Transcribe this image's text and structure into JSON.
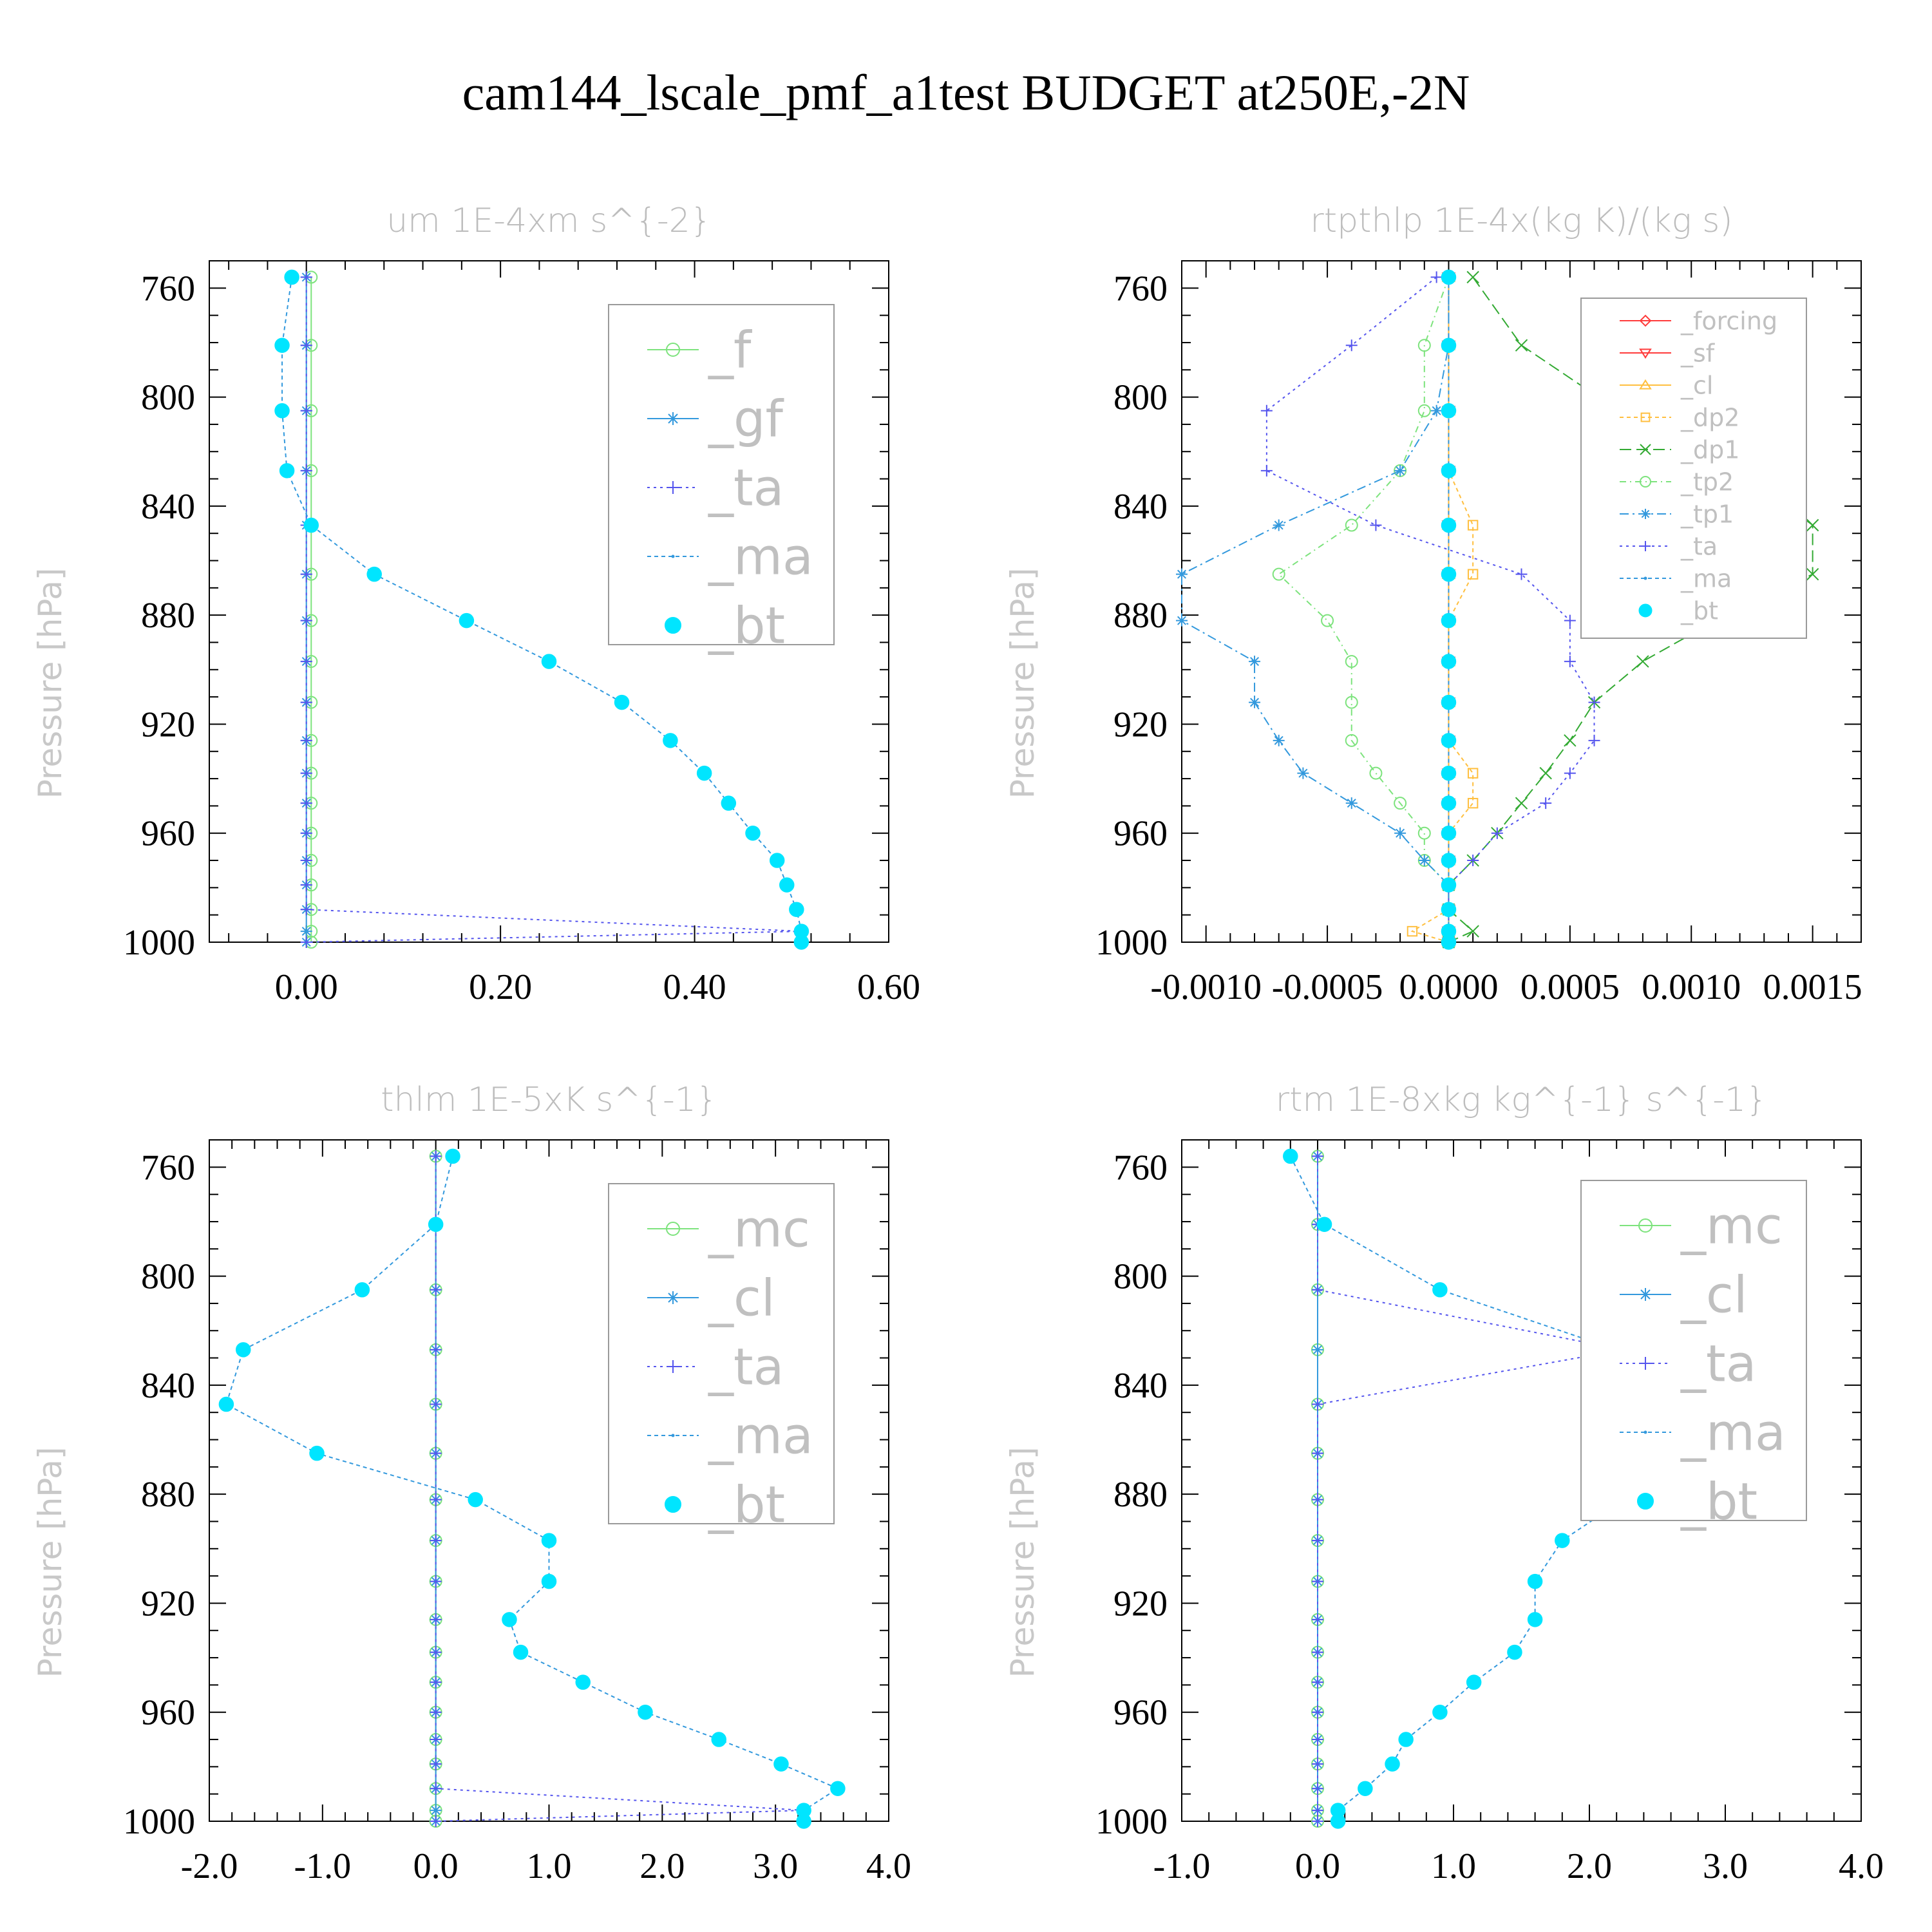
{
  "title": "cam144_lscale_pmf_a1test  BUDGET at250E,-2N",
  "colors": {
    "forcing": "#ff3b3b",
    "sf": "#ff3b3b",
    "cl_orange": "#ffbf3f",
    "dp2": "#ffbf3f",
    "dp1": "#33aa33",
    "tp2": "#7de37d",
    "tp1": "#3399dd",
    "ta": "#5555ee",
    "ma": "#3399dd",
    "bt": "#00e5ff",
    "f": "#7de37d",
    "gf": "#3399dd",
    "mc": "#7de37d",
    "cl": "#3399dd"
  },
  "chart_data": [
    {
      "type": "line",
      "title": "um  1E-4xm s^{-2}",
      "ylabel": "Pressure [hPa]",
      "xlim": [
        -0.1,
        0.6
      ],
      "ylim": [
        750,
        1000
      ],
      "y_inverted": true,
      "xticks": [
        "0.00",
        "0.20",
        "0.40",
        "0.60"
      ],
      "xtick_values": [
        0,
        0.2,
        0.4,
        0.6
      ],
      "yticks": [
        "760",
        "800",
        "840",
        "880",
        "920",
        "960",
        "1000"
      ],
      "ytick_values": [
        760,
        800,
        840,
        880,
        920,
        960,
        1000
      ],
      "legend": {
        "entries": [
          "_f",
          "_gf",
          "_ta",
          "_ma",
          "_bt"
        ],
        "big": true
      },
      "levels": [
        756,
        781,
        805,
        827,
        847,
        865,
        882,
        897,
        912,
        926,
        938,
        949,
        960,
        970,
        979,
        988,
        996,
        1000
      ],
      "series": [
        {
          "name": "_f",
          "marker": "circle",
          "dash": "",
          "values": [
            0.005,
            0.005,
            0.005,
            0.005,
            0.005,
            0.005,
            0.005,
            0.005,
            0.005,
            0.005,
            0.005,
            0.005,
            0.005,
            0.005,
            0.005,
            0.005,
            0.005,
            0.005
          ]
        },
        {
          "name": "_gf",
          "marker": "star",
          "dash": "",
          "values": [
            0,
            0,
            0,
            0,
            0,
            0,
            0,
            0,
            0,
            0,
            0,
            0,
            0,
            0,
            0,
            0,
            0,
            0
          ]
        },
        {
          "name": "_ta",
          "marker": "plus",
          "dash": "4,6",
          "values": [
            0,
            0,
            0,
            0,
            0,
            0,
            0,
            0,
            0,
            0,
            0,
            0,
            0,
            0,
            0,
            0,
            0.51,
            0
          ]
        },
        {
          "name": "_ma",
          "marker": "dot",
          "dash": "6,5",
          "values": [
            -0.015,
            -0.025,
            -0.025,
            -0.02,
            0.005,
            0.07,
            0.165,
            0.25,
            0.325,
            0.375,
            0.41,
            0.435,
            0.46,
            0.485,
            0.495,
            0.505,
            0.51,
            0.51
          ]
        },
        {
          "name": "_bt",
          "marker": "fill",
          "dash": "",
          "line": false,
          "values": [
            -0.015,
            -0.025,
            -0.025,
            -0.02,
            0.005,
            0.07,
            0.165,
            0.25,
            0.325,
            0.375,
            0.41,
            0.435,
            0.46,
            0.485,
            0.495,
            0.505,
            0.51,
            0.51
          ]
        }
      ]
    },
    {
      "type": "line",
      "title": "rtpthlp  1E-4x(kg K)/(kg s)",
      "ylabel": "Pressure [hPa]",
      "xlim": [
        -0.0011,
        0.0017
      ],
      "ylim": [
        750,
        1000
      ],
      "y_inverted": true,
      "xticks": [
        "-0.0010",
        "-0.0005",
        "0.0000",
        "0.0005",
        "0.0010",
        "0.0015"
      ],
      "xtick_values": [
        -0.001,
        -0.0005,
        0,
        0.0005,
        0.001,
        0.0015
      ],
      "yticks": [
        "760",
        "800",
        "840",
        "880",
        "920",
        "960",
        "1000"
      ],
      "ytick_values": [
        760,
        800,
        840,
        880,
        920,
        960,
        1000
      ],
      "legend": {
        "entries": [
          "_forcing",
          "_sf",
          "_cl",
          "_dp2",
          "_dp1",
          "_tp2",
          "_tp1",
          "_ta",
          "_ma",
          "_bt"
        ],
        "big": false
      },
      "levels": [
        756,
        781,
        805,
        827,
        847,
        865,
        882,
        897,
        912,
        926,
        938,
        949,
        960,
        970,
        979,
        988,
        996,
        1000
      ],
      "series": [
        {
          "name": "_forcing",
          "marker": "diamond",
          "dash": "",
          "values": [
            0,
            0,
            0,
            0,
            0,
            0,
            0,
            0,
            0,
            0,
            0,
            0,
            0,
            0,
            0,
            0,
            0,
            0
          ]
        },
        {
          "name": "_sf",
          "marker": "tri-down",
          "dash": "",
          "values": [
            0,
            0,
            0,
            0,
            0,
            0,
            0,
            0,
            0,
            0,
            0,
            0,
            0,
            0,
            0,
            0,
            0,
            0
          ]
        },
        {
          "name": "_cl",
          "marker": "tri-up",
          "dash": "",
          "values": [
            0,
            0,
            0,
            0,
            0,
            0,
            0,
            0,
            0,
            0,
            0,
            0,
            0,
            0,
            0,
            0,
            0,
            0
          ]
        },
        {
          "name": "_dp2",
          "marker": "square",
          "dash": "6,5",
          "values": [
            0,
            0,
            0,
            0,
            0.0001,
            0.0001,
            0,
            0,
            0,
            0,
            0.0001,
            0.0001,
            0,
            0,
            0,
            0,
            -0.00015,
            0
          ]
        },
        {
          "name": "_dp1",
          "marker": "x",
          "dash": "18,8",
          "values": [
            0.0001,
            0.0003,
            0.0007,
            0.0012,
            0.0015,
            0.0015,
            0.0011,
            0.0008,
            0.0006,
            0.0005,
            0.0004,
            0.0003,
            0.0002,
            0.0001,
            0,
            0,
            0.0001,
            0
          ]
        },
        {
          "name": "_tp2",
          "marker": "circle",
          "dash": "10,6,2,6",
          "values": [
            0,
            -0.0001,
            -0.0001,
            -0.0002,
            -0.0004,
            -0.0007,
            -0.0005,
            -0.0004,
            -0.0004,
            -0.0004,
            -0.0003,
            -0.0002,
            -0.0001,
            -0.0001,
            0,
            0,
            0,
            0
          ]
        },
        {
          "name": "_tp1",
          "marker": "star",
          "dash": "14,6,3,6",
          "values": [
            0,
            0,
            -5e-05,
            -0.0002,
            -0.0007,
            -0.0011,
            -0.0011,
            -0.0008,
            -0.0008,
            -0.0007,
            -0.0006,
            -0.0004,
            -0.0002,
            -0.0001,
            0,
            0,
            0,
            0
          ]
        },
        {
          "name": "_ta",
          "marker": "plus",
          "dash": "4,6",
          "values": [
            -5e-05,
            -0.0004,
            -0.00075,
            -0.00075,
            -0.0003,
            0.0003,
            0.0005,
            0.0005,
            0.0006,
            0.0006,
            0.0005,
            0.0004,
            0.0002,
            0.0001,
            0,
            0,
            0,
            0
          ]
        },
        {
          "name": "_ma",
          "marker": "dot",
          "dash": "6,5",
          "values": [
            0,
            0,
            0,
            0,
            0,
            0,
            0,
            0,
            0,
            0,
            0,
            0,
            0,
            0,
            0,
            0,
            0,
            0
          ]
        },
        {
          "name": "_bt",
          "marker": "fill",
          "dash": "",
          "line": false,
          "values": [
            0,
            0,
            0,
            0,
            0,
            0,
            0,
            0,
            0,
            0,
            0,
            0,
            0,
            0,
            0,
            0,
            0,
            0
          ]
        }
      ]
    },
    {
      "type": "line",
      "title": "thlm  1E-5xK s^{-1}",
      "ylabel": "Pressure [hPa]",
      "xlim": [
        -2.0,
        4.0
      ],
      "ylim": [
        750,
        1000
      ],
      "y_inverted": true,
      "xticks": [
        "-2.0",
        "-1.0",
        "0.0",
        "1.0",
        "2.0",
        "3.0",
        "4.0"
      ],
      "xtick_values": [
        -2,
        -1,
        0,
        1,
        2,
        3,
        4
      ],
      "yticks": [
        "760",
        "800",
        "840",
        "880",
        "920",
        "960",
        "1000"
      ],
      "ytick_values": [
        760,
        800,
        840,
        880,
        920,
        960,
        1000
      ],
      "legend": {
        "entries": [
          "_mc",
          "_cl",
          "_ta",
          "_ma",
          "_bt"
        ],
        "big": true
      },
      "levels": [
        756,
        781,
        805,
        827,
        847,
        865,
        882,
        897,
        912,
        926,
        938,
        949,
        960,
        970,
        979,
        988,
        996,
        1000
      ],
      "series": [
        {
          "name": "_mc",
          "marker": "circle",
          "dash": "",
          "values": [
            0,
            0,
            0,
            0,
            0,
            0,
            0,
            0,
            0,
            0,
            0,
            0,
            0,
            0,
            0,
            0,
            0,
            0
          ]
        },
        {
          "name": "_cl",
          "marker": "star",
          "dash": "",
          "values": [
            0,
            0,
            0,
            0,
            0,
            0,
            0,
            0,
            0,
            0,
            0,
            0,
            0,
            0,
            0,
            0,
            0,
            0
          ]
        },
        {
          "name": "_ta",
          "marker": "plus",
          "dash": "4,6",
          "values": [
            0,
            0,
            0,
            0,
            0,
            0,
            0,
            0,
            0,
            0,
            0,
            0,
            0,
            0,
            0,
            0,
            3.25,
            0
          ]
        },
        {
          "name": "_ma",
          "marker": "dot",
          "dash": "6,5",
          "values": [
            0.15,
            0,
            -0.65,
            -1.7,
            -1.85,
            -1.05,
            0.35,
            1.0,
            1.0,
            0.65,
            0.75,
            1.3,
            1.85,
            2.5,
            3.05,
            3.55,
            3.25,
            3.25
          ]
        },
        {
          "name": "_bt",
          "marker": "fill",
          "dash": "",
          "line": false,
          "values": [
            0.15,
            0,
            -0.65,
            -1.7,
            -1.85,
            -1.05,
            0.35,
            1.0,
            1.0,
            0.65,
            0.75,
            1.3,
            1.85,
            2.5,
            3.05,
            3.55,
            3.25,
            3.25
          ]
        }
      ]
    },
    {
      "type": "line",
      "title": "rtm  1E-8xkg kg^{-1} s^{-1}",
      "ylabel": "Pressure [hPa]",
      "xlim": [
        -1.0,
        4.0
      ],
      "ylim": [
        750,
        1000
      ],
      "y_inverted": true,
      "xticks": [
        "-1.0",
        "0.0",
        "1.0",
        "2.0",
        "3.0",
        "4.0"
      ],
      "xtick_values": [
        -1,
        0,
        1,
        2,
        3,
        4
      ],
      "yticks": [
        "760",
        "800",
        "840",
        "880",
        "920",
        "960",
        "1000"
      ],
      "ytick_values": [
        760,
        800,
        840,
        880,
        920,
        960,
        1000
      ],
      "legend": {
        "entries": [
          "_mc",
          "_cl",
          "_ta",
          "_ma",
          "_bt"
        ],
        "big": true
      },
      "levels": [
        756,
        781,
        805,
        827,
        847,
        865,
        882,
        897,
        912,
        926,
        938,
        949,
        960,
        970,
        979,
        988,
        996,
        1000
      ],
      "series": [
        {
          "name": "_mc",
          "marker": "circle",
          "dash": "",
          "values": [
            0,
            0,
            0,
            0,
            0,
            0,
            0,
            0,
            0,
            0,
            0,
            0,
            0,
            0,
            0,
            0,
            0,
            0
          ]
        },
        {
          "name": "_cl",
          "marker": "star",
          "dash": "",
          "values": [
            0,
            0,
            0,
            0,
            0,
            0,
            0,
            0,
            0,
            0,
            0,
            0,
            0,
            0,
            0,
            0,
            0,
            0
          ]
        },
        {
          "name": "_ta",
          "marker": "plus",
          "dash": "4,6",
          "values": [
            0,
            0,
            0,
            2.25,
            0,
            0,
            0,
            0,
            0,
            0,
            0,
            0,
            0,
            0,
            0,
            0,
            0,
            0
          ]
        },
        {
          "name": "_ma",
          "marker": "dot",
          "dash": "6,5",
          "values": [
            -0.2,
            0.05,
            0.9,
            2.2,
            3.3,
            3.2,
            2.25,
            1.8,
            1.6,
            1.6,
            1.45,
            1.15,
            0.9,
            0.65,
            0.55,
            0.35,
            0.15,
            0.15
          ]
        },
        {
          "name": "_bt",
          "marker": "fill",
          "dash": "",
          "line": false,
          "values": [
            -0.2,
            0.05,
            0.9,
            2.2,
            3.3,
            3.2,
            2.25,
            1.8,
            1.6,
            1.6,
            1.45,
            1.15,
            0.9,
            0.65,
            0.55,
            0.35,
            0.15,
            0.15
          ]
        }
      ]
    }
  ]
}
